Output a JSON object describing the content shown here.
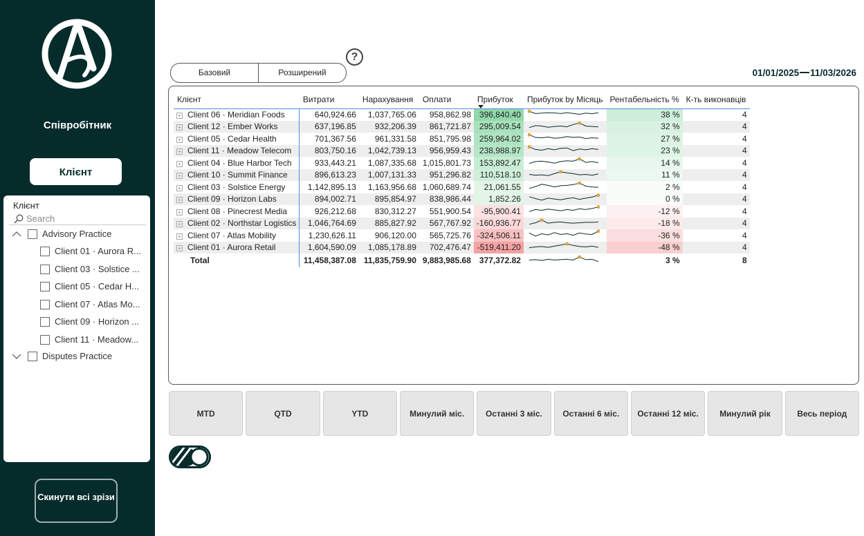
{
  "sidebar": {
    "role_label": "Співробітник",
    "client_button": "Клієнт",
    "slicer": {
      "title": "Клієнт",
      "search_placeholder": "Search",
      "items": [
        {
          "label": "Advisory Practice",
          "level": 0,
          "expanded": true
        },
        {
          "label": "Client 01 · Aurora R...",
          "level": 1
        },
        {
          "label": "Client 03 · Solstice ...",
          "level": 1
        },
        {
          "label": "Client 05 · Cedar H...",
          "level": 1
        },
        {
          "label": "Client 07 · Atlas Mo...",
          "level": 1
        },
        {
          "label": "Client 09 · Horizon ...",
          "level": 1
        },
        {
          "label": "Client 11 · Meadow...",
          "level": 1
        },
        {
          "label": "Disputes Practice",
          "level": 0,
          "expanded": false
        }
      ]
    },
    "reset_button": "Скинути всі зрізи"
  },
  "view_tabs": [
    "Базовий",
    "Розширений"
  ],
  "help_label": "?",
  "date_range": {
    "start": "01/01/2025",
    "end": "11/03/2026"
  },
  "table": {
    "headers": [
      "Клієнт",
      "Витрати",
      "Нарахування",
      "Оплати",
      "Прибуток",
      "Прибуток by Місяць",
      "Рентабельність %",
      "К-ть виконавців"
    ],
    "sorted_column": "Прибуток",
    "rows": [
      {
        "client": "Client 06 · Meridian Foods",
        "costs": "640,924.66",
        "accruals": "1,037,765.06",
        "payments": "958,862.98",
        "profit": "396,840.40",
        "profit_value": 396840.4,
        "margin": "38 %",
        "count": "4",
        "spark": [
          0.9,
          0.6,
          0.65,
          0.7,
          0.68,
          0.6,
          0.72,
          0.62,
          0.5,
          0.66,
          0.58,
          0.7
        ],
        "spark_max_index": 0
      },
      {
        "client": "Client 12 · Ember Works",
        "costs": "637,196.85",
        "accruals": "932,206.39",
        "payments": "861,721.87",
        "profit": "295,009.54",
        "profit_value": 295009.54,
        "margin": "32 %",
        "count": "4",
        "spark": [
          0.3,
          0.55,
          0.5,
          0.35,
          0.45,
          0.5,
          0.4,
          0.7,
          0.9,
          0.5,
          0.45,
          0.4
        ],
        "spark_max_index": 8
      },
      {
        "client": "Client 05 · Cedar Health",
        "costs": "701,367.56",
        "accruals": "961,331.58",
        "payments": "851,795.98",
        "profit": "259,964.02",
        "profit_value": 259964.02,
        "margin": "27 %",
        "count": "4",
        "spark": [
          0.9,
          0.55,
          0.5,
          0.6,
          0.45,
          0.5,
          0.65,
          0.55,
          0.6,
          0.4,
          0.5,
          0.45
        ],
        "spark_max_index": 0
      },
      {
        "client": "Client 11 · Meadow Telecom",
        "costs": "803,750.16",
        "accruals": "1,042,739.13",
        "payments": "956,959.43",
        "profit": "238,988.97",
        "profit_value": 238988.97,
        "margin": "23 %",
        "count": "4",
        "spark": [
          0.95,
          0.6,
          0.5,
          0.7,
          0.55,
          0.75,
          0.8,
          0.45,
          0.65,
          0.55,
          0.7,
          0.6
        ],
        "spark_max_index": 0
      },
      {
        "client": "Client 04 · Blue Harbor Tech",
        "costs": "933,443.21",
        "accruals": "1,087,335.68",
        "payments": "1,015,801.73",
        "profit": "153,892.47",
        "profit_value": 153892.47,
        "margin": "14 %",
        "count": "4",
        "spark": [
          0.3,
          0.55,
          0.6,
          0.5,
          0.35,
          0.55,
          0.65,
          0.6,
          0.9,
          0.45,
          0.55,
          0.4
        ],
        "spark_max_index": 8
      },
      {
        "client": "Client 10 · Summit Finance",
        "costs": "896,613.23",
        "accruals": "1,007,131.33",
        "payments": "951,296.82",
        "profit": "110,518.10",
        "profit_value": 110518.1,
        "margin": "11 %",
        "count": "4",
        "spark": [
          0.5,
          0.4,
          0.45,
          0.35,
          0.6,
          0.85,
          0.7,
          0.6,
          0.45,
          0.5,
          0.4,
          0.55
        ],
        "spark_max_index": 5
      },
      {
        "client": "Client 03 · Solstice Energy",
        "costs": "1,142,895.13",
        "accruals": "1,163,956.68",
        "payments": "1,060,689.74",
        "profit": "21,061.55",
        "profit_value": 21061.55,
        "margin": "2 %",
        "count": "4",
        "spark": [
          0.2,
          0.45,
          0.75,
          0.6,
          0.4,
          0.55,
          0.6,
          0.7,
          0.9,
          0.5,
          0.4,
          0.35
        ],
        "spark_max_index": 8
      },
      {
        "client": "Client 09 · Horizon Labs",
        "costs": "894,002.71",
        "accruals": "895,854.97",
        "payments": "838,986.44",
        "profit": "1,852.26",
        "profit_value": 1852.26,
        "margin": "0 %",
        "count": "4",
        "spark": [
          0.75,
          0.5,
          0.3,
          0.55,
          0.45,
          0.35,
          0.5,
          0.6,
          0.4,
          0.55,
          0.7,
          0.95
        ],
        "spark_max_index": 11
      },
      {
        "client": "Client 08 · Pinecrest Media",
        "costs": "926,212.68",
        "accruals": "830,312.27",
        "payments": "551,900.54",
        "profit": "-95,900.41",
        "profit_value": -95900.41,
        "margin": "-12 %",
        "count": "4",
        "spark": [
          0.35,
          0.6,
          0.5,
          0.65,
          0.55,
          0.45,
          0.6,
          0.5,
          0.7,
          0.6,
          0.75,
          0.95
        ],
        "spark_max_index": 11
      },
      {
        "client": "Client 02 · Northstar Logistics",
        "costs": "1,046,764.69",
        "accruals": "885,827.92",
        "payments": "567,767.92",
        "profit": "-160,936.77",
        "profit_value": -160936.77,
        "margin": "-18 %",
        "count": "4",
        "spark": [
          0.3,
          0.5,
          0.85,
          0.45,
          0.55,
          0.6,
          0.5,
          0.45,
          0.5,
          0.55,
          0.55,
          0.6
        ],
        "spark_max_index": 2
      },
      {
        "client": "Client 07 · Atlas Mobility",
        "costs": "1,230,626.11",
        "accruals": "906,120.00",
        "payments": "565,725.76",
        "profit": "-324,506.11",
        "profit_value": -324506.11,
        "margin": "-36 %",
        "count": "4",
        "spark": [
          0.7,
          0.3,
          0.6,
          0.45,
          0.75,
          0.5,
          0.6,
          0.4,
          0.7,
          0.55,
          0.5,
          0.95
        ],
        "spark_max_index": 11
      },
      {
        "client": "Client 01 · Aurora Retail",
        "costs": "1,604,590.09",
        "accruals": "1,085,178.89",
        "payments": "702,476.47",
        "profit": "-519,411.20",
        "profit_value": -519411.2,
        "margin": "-48 %",
        "count": "4",
        "spark": [
          0.4,
          0.5,
          0.55,
          0.45,
          0.6,
          0.75,
          0.9,
          0.7,
          0.55,
          0.5,
          0.6,
          0.45
        ],
        "spark_max_index": 6
      }
    ],
    "total": {
      "label": "Total",
      "costs": "11,458,387.08",
      "accruals": "11,835,759.90",
      "payments": "9,883,985.68",
      "profit": "377,372.82",
      "margin": "3 %",
      "count": "8",
      "spark": [
        0.5,
        0.55,
        0.45,
        0.6,
        0.5,
        0.55,
        0.6,
        0.5,
        0.9,
        0.55,
        0.6,
        0.3
      ],
      "spark_max_index": 8
    }
  },
  "period_buttons": [
    "MTD",
    "QTD",
    "YTD",
    "Минулий міс.",
    "Останні 3 міс.",
    "Останні 6 міс.",
    "Останні 12 міс.",
    "Минулий рік",
    "Весь період"
  ],
  "colors": {
    "sidebar_bg": "#062b2b",
    "positive": "#63c987",
    "negative": "#f08080",
    "spark_line": "#062b2b",
    "spark_max": "#d9a441"
  }
}
